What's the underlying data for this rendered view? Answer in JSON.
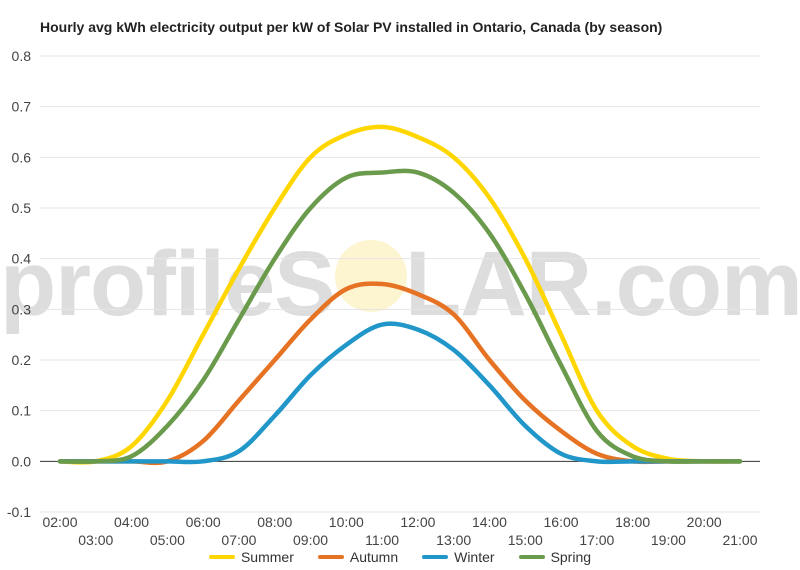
{
  "chart_data": {
    "type": "line",
    "title": "Hourly avg kWh electricity output per kW of Solar PV installed in Ontario, Canada (by season)",
    "xlabel": "",
    "ylabel": "",
    "ylim": [
      -0.1,
      0.8
    ],
    "yticks": [
      "-0.1",
      "0.0",
      "0.1",
      "0.2",
      "0.3",
      "0.4",
      "0.5",
      "0.6",
      "0.7",
      "0.8"
    ],
    "grid": true,
    "legend_position": "bottom",
    "categories": [
      "02:00",
      "03:00",
      "04:00",
      "05:00",
      "06:00",
      "07:00",
      "08:00",
      "09:00",
      "10:00",
      "11:00",
      "12:00",
      "13:00",
      "14:00",
      "15:00",
      "16:00",
      "17:00",
      "18:00",
      "19:00",
      "20:00",
      "21:00"
    ],
    "series": [
      {
        "name": "Summer",
        "color": "#FFD600",
        "values": [
          0.0,
          0.0,
          0.03,
          0.12,
          0.25,
          0.38,
          0.5,
          0.6,
          0.645,
          0.66,
          0.64,
          0.6,
          0.52,
          0.4,
          0.25,
          0.1,
          0.03,
          0.005,
          0.0,
          0.0
        ]
      },
      {
        "name": "Autumn",
        "color": "#E67324",
        "values": [
          0.0,
          0.0,
          0.0,
          0.0,
          0.04,
          0.12,
          0.2,
          0.28,
          0.34,
          0.35,
          0.33,
          0.29,
          0.2,
          0.12,
          0.06,
          0.015,
          0.0,
          0.0,
          0.0,
          0.0
        ]
      },
      {
        "name": "Winter",
        "color": "#2196C9",
        "values": [
          0.0,
          0.0,
          0.0,
          0.0,
          0.0,
          0.02,
          0.09,
          0.17,
          0.23,
          0.27,
          0.26,
          0.22,
          0.15,
          0.07,
          0.015,
          0.0,
          0.0,
          0.0,
          0.0,
          0.0
        ]
      },
      {
        "name": "Spring",
        "color": "#6A9A4B",
        "values": [
          0.0,
          0.0,
          0.01,
          0.07,
          0.16,
          0.28,
          0.4,
          0.5,
          0.56,
          0.57,
          0.57,
          0.53,
          0.45,
          0.33,
          0.19,
          0.06,
          0.01,
          0.0,
          0.0,
          0.0
        ]
      }
    ]
  },
  "watermark": {
    "part1": "profileS",
    "part2": "LAR.com"
  }
}
